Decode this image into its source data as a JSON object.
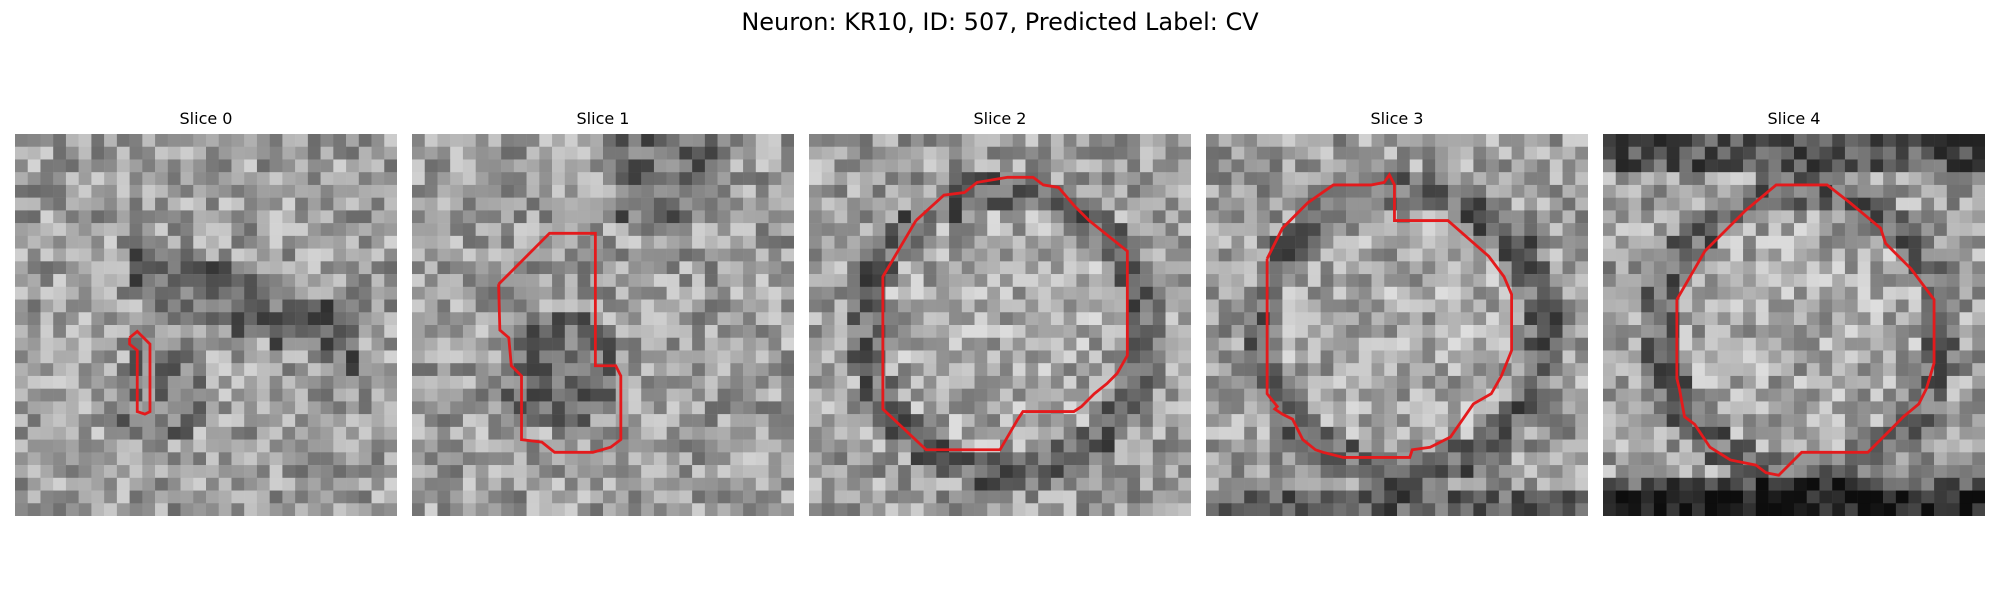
{
  "figure": {
    "title": "Neuron: KR10, ID: 507, Predicted Label: CV",
    "contour_color": "#e41a1c"
  },
  "panels": [
    {
      "title": "Slice 0",
      "image": "slice-0-grayscale-crop",
      "contour": "small elongated outline"
    },
    {
      "title": "Slice 1",
      "image": "slice-1-grayscale-crop",
      "contour": "irregular vertical outline"
    },
    {
      "title": "Slice 2",
      "image": "slice-2-grayscale-crop",
      "contour": "round outline"
    },
    {
      "title": "Slice 3",
      "image": "slice-3-grayscale-crop",
      "contour": "round outline"
    },
    {
      "title": "Slice 4",
      "image": "slice-4-grayscale-crop",
      "contour": "round outline"
    }
  ]
}
